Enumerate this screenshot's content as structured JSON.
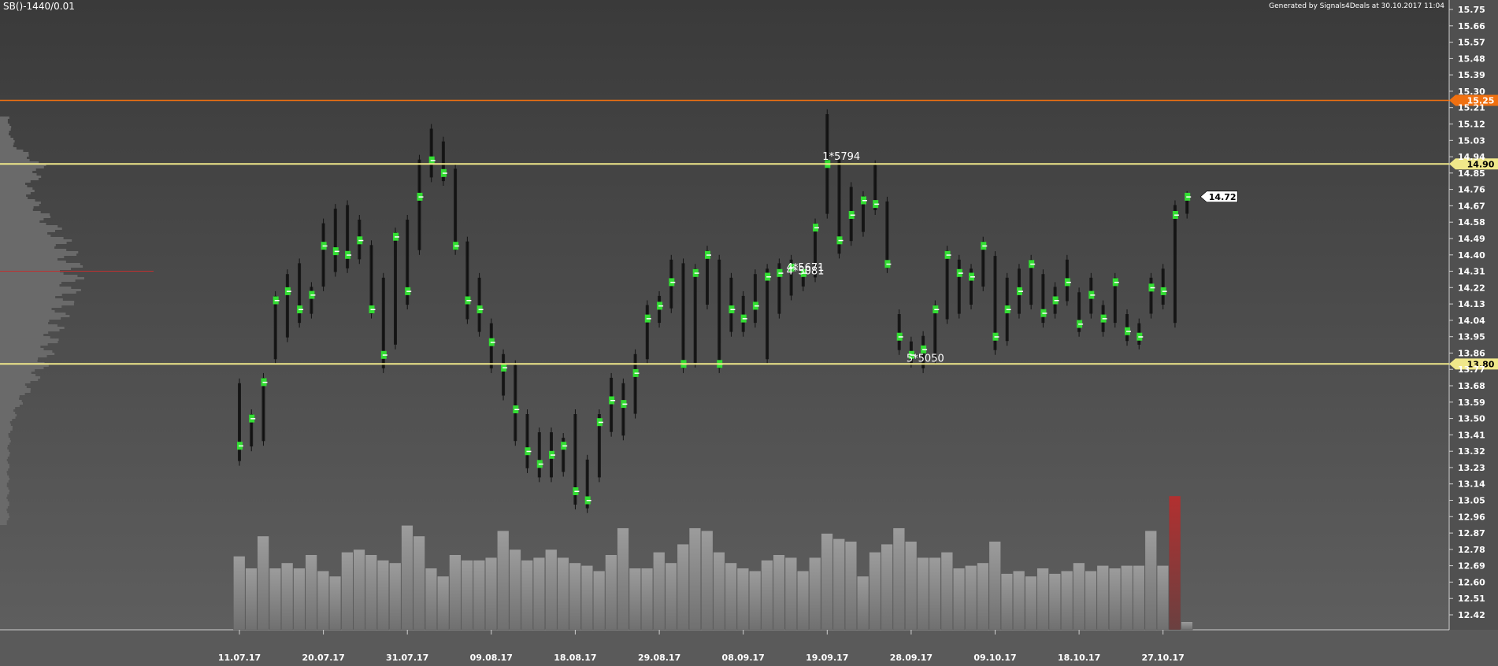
{
  "header": {
    "symbol": "SB()-1440/0.01",
    "generated": "Generated by Signals4Deals at 30.10.2017 11:04"
  },
  "colors": {
    "bg_top": "#3a3a3a",
    "bg_bottom": "#5a5a5a",
    "candle_body": "#111111",
    "cluster": "#33dd33",
    "volume": "#9a9a9a",
    "volume_last": "#b03030",
    "level": "#f0e88a",
    "level_orange": "#f07010",
    "axis_text": "#ffffff"
  },
  "chart_data": {
    "type": "candlestick",
    "ylim": [
      12.42,
      15.75
    ],
    "y_ticks": [
      15.75,
      15.66,
      15.57,
      15.48,
      15.39,
      15.3,
      15.21,
      15.12,
      15.03,
      14.94,
      14.85,
      14.76,
      14.67,
      14.58,
      14.49,
      14.4,
      14.31,
      14.22,
      14.13,
      14.04,
      13.95,
      13.86,
      13.77,
      13.68,
      13.59,
      13.5,
      13.41,
      13.32,
      13.23,
      13.14,
      13.05,
      12.96,
      12.87,
      12.78,
      12.69,
      12.6,
      12.51,
      12.42
    ],
    "x_ticks": [
      {
        "label": "11.07.17",
        "index": 0
      },
      {
        "label": "20.07.17",
        "index": 7
      },
      {
        "label": "31.07.17",
        "index": 14
      },
      {
        "label": "09.08.17",
        "index": 21
      },
      {
        "label": "18.08.17",
        "index": 28
      },
      {
        "label": "29.08.17",
        "index": 35
      },
      {
        "label": "08.09.17",
        "index": 42
      },
      {
        "label": "19.09.17",
        "index": 49
      },
      {
        "label": "28.09.17",
        "index": 56
      },
      {
        "label": "09.10.17",
        "index": 63
      },
      {
        "label": "18.10.17",
        "index": 70
      },
      {
        "label": "27.10.17",
        "index": 77
      }
    ],
    "levels": [
      {
        "value": 15.25,
        "label": "15.25",
        "color": "#f07010"
      },
      {
        "value": 14.9,
        "label": "14.90",
        "color": "#f0e88a"
      },
      {
        "value": 13.8,
        "label": "13.80",
        "color": "#f0e88a"
      }
    ],
    "last_price": {
      "value": 14.72,
      "label": "14.72"
    },
    "annotations": [
      {
        "text": "1*5794",
        "index": 49,
        "y": 14.94
      },
      {
        "text": "4*5671",
        "index": 46,
        "y": 14.33
      },
      {
        "text": "4*5081",
        "index": 46,
        "y": 14.31
      },
      {
        "text": "5*5050",
        "index": 56,
        "y": 13.83
      }
    ],
    "candles": [
      {
        "h": 13.72,
        "l": 13.24,
        "c": 13.35
      },
      {
        "h": 13.55,
        "l": 13.32,
        "c": 13.5
      },
      {
        "h": 13.75,
        "l": 13.35,
        "c": 13.7
      },
      {
        "h": 14.2,
        "l": 13.8,
        "c": 14.15
      },
      {
        "h": 14.32,
        "l": 13.92,
        "c": 14.2
      },
      {
        "h": 14.38,
        "l": 14.0,
        "c": 14.1
      },
      {
        "h": 14.25,
        "l": 14.05,
        "c": 14.18
      },
      {
        "h": 14.6,
        "l": 14.2,
        "c": 14.45
      },
      {
        "h": 14.68,
        "l": 14.28,
        "c": 14.42
      },
      {
        "h": 14.7,
        "l": 14.3,
        "c": 14.4
      },
      {
        "h": 14.62,
        "l": 14.35,
        "c": 14.48
      },
      {
        "h": 14.48,
        "l": 14.05,
        "c": 14.1
      },
      {
        "h": 14.3,
        "l": 13.75,
        "c": 13.85
      },
      {
        "h": 14.55,
        "l": 13.88,
        "c": 14.5
      },
      {
        "h": 14.62,
        "l": 14.1,
        "c": 14.2
      },
      {
        "h": 14.95,
        "l": 14.4,
        "c": 14.72
      },
      {
        "h": 15.12,
        "l": 14.8,
        "c": 14.92
      },
      {
        "h": 15.05,
        "l": 14.78,
        "c": 14.85
      },
      {
        "h": 14.9,
        "l": 14.4,
        "c": 14.45
      },
      {
        "h": 14.5,
        "l": 14.02,
        "c": 14.15
      },
      {
        "h": 14.3,
        "l": 13.95,
        "c": 14.1
      },
      {
        "h": 14.05,
        "l": 13.75,
        "c": 13.92
      },
      {
        "h": 13.88,
        "l": 13.6,
        "c": 13.78
      },
      {
        "h": 13.82,
        "l": 13.35,
        "c": 13.55
      },
      {
        "h": 13.55,
        "l": 13.2,
        "c": 13.32
      },
      {
        "h": 13.45,
        "l": 13.15,
        "c": 13.25
      },
      {
        "h": 13.45,
        "l": 13.15,
        "c": 13.3
      },
      {
        "h": 13.42,
        "l": 13.18,
        "c": 13.35
      },
      {
        "h": 13.55,
        "l": 13.0,
        "c": 13.1
      },
      {
        "h": 13.3,
        "l": 12.98,
        "c": 13.05
      },
      {
        "h": 13.55,
        "l": 13.15,
        "c": 13.48
      },
      {
        "h": 13.75,
        "l": 13.4,
        "c": 13.6
      },
      {
        "h": 13.72,
        "l": 13.38,
        "c": 13.58
      },
      {
        "h": 13.88,
        "l": 13.5,
        "c": 13.75
      },
      {
        "h": 14.15,
        "l": 13.8,
        "c": 14.05
      },
      {
        "h": 14.2,
        "l": 14.0,
        "c": 14.12
      },
      {
        "h": 14.4,
        "l": 14.08,
        "c": 14.25
      },
      {
        "h": 14.38,
        "l": 13.75,
        "c": 13.8
      },
      {
        "h": 14.35,
        "l": 13.78,
        "c": 14.3
      },
      {
        "h": 14.45,
        "l": 14.1,
        "c": 14.4
      },
      {
        "h": 14.4,
        "l": 13.75,
        "c": 13.8
      },
      {
        "h": 14.3,
        "l": 13.95,
        "c": 14.1
      },
      {
        "h": 14.2,
        "l": 13.95,
        "c": 14.05
      },
      {
        "h": 14.32,
        "l": 14.0,
        "c": 14.12
      },
      {
        "h": 14.35,
        "l": 13.8,
        "c": 14.28
      },
      {
        "h": 14.38,
        "l": 14.05,
        "c": 14.3
      },
      {
        "h": 14.4,
        "l": 14.15,
        "c": 14.33
      },
      {
        "h": 14.35,
        "l": 14.2,
        "c": 14.3
      },
      {
        "h": 14.6,
        "l": 14.25,
        "c": 14.55
      },
      {
        "h": 15.2,
        "l": 14.6,
        "c": 14.9
      },
      {
        "h": 14.95,
        "l": 14.38,
        "c": 14.48
      },
      {
        "h": 14.8,
        "l": 14.45,
        "c": 14.62
      },
      {
        "h": 14.75,
        "l": 14.5,
        "c": 14.7
      },
      {
        "h": 14.92,
        "l": 14.62,
        "c": 14.68
      },
      {
        "h": 14.72,
        "l": 14.3,
        "c": 14.35
      },
      {
        "h": 14.1,
        "l": 13.85,
        "c": 13.95
      },
      {
        "h": 13.95,
        "l": 13.78,
        "c": 13.85
      },
      {
        "h": 13.98,
        "l": 13.75,
        "c": 13.88
      },
      {
        "h": 14.15,
        "l": 13.8,
        "c": 14.1
      },
      {
        "h": 14.45,
        "l": 14.02,
        "c": 14.4
      },
      {
        "h": 14.4,
        "l": 14.05,
        "c": 14.3
      },
      {
        "h": 14.35,
        "l": 14.1,
        "c": 14.28
      },
      {
        "h": 14.5,
        "l": 14.2,
        "c": 14.45
      },
      {
        "h": 14.42,
        "l": 13.85,
        "c": 13.95
      },
      {
        "h": 14.3,
        "l": 13.9,
        "c": 14.1
      },
      {
        "h": 14.35,
        "l": 14.05,
        "c": 14.2
      },
      {
        "h": 14.4,
        "l": 14.1,
        "c": 14.35
      },
      {
        "h": 14.32,
        "l": 14.0,
        "c": 14.08
      },
      {
        "h": 14.25,
        "l": 14.05,
        "c": 14.15
      },
      {
        "h": 14.4,
        "l": 14.12,
        "c": 14.25
      },
      {
        "h": 14.22,
        "l": 13.95,
        "c": 14.02
      },
      {
        "h": 14.3,
        "l": 14.05,
        "c": 14.18
      },
      {
        "h": 14.15,
        "l": 13.95,
        "c": 14.05
      },
      {
        "h": 14.3,
        "l": 14.0,
        "c": 14.25
      },
      {
        "h": 14.1,
        "l": 13.9,
        "c": 13.98
      },
      {
        "h": 14.05,
        "l": 13.88,
        "c": 13.95
      },
      {
        "h": 14.3,
        "l": 14.05,
        "c": 14.22
      },
      {
        "h": 14.35,
        "l": 14.1,
        "c": 14.2
      },
      {
        "h": 14.7,
        "l": 14.0,
        "c": 14.62
      },
      {
        "h": 14.75,
        "l": 14.6,
        "c": 14.72
      }
    ],
    "volumes": [
      0.55,
      0.46,
      0.7,
      0.46,
      0.5,
      0.46,
      0.56,
      0.44,
      0.4,
      0.58,
      0.6,
      0.56,
      0.52,
      0.5,
      0.78,
      0.7,
      0.46,
      0.4,
      0.56,
      0.52,
      0.52,
      0.54,
      0.74,
      0.6,
      0.52,
      0.54,
      0.6,
      0.54,
      0.5,
      0.48,
      0.44,
      0.56,
      0.76,
      0.46,
      0.46,
      0.58,
      0.5,
      0.64,
      0.76,
      0.74,
      0.58,
      0.5,
      0.46,
      0.44,
      0.52,
      0.56,
      0.54,
      0.44,
      0.54,
      0.72,
      0.68,
      0.66,
      0.4,
      0.58,
      0.64,
      0.76,
      0.66,
      0.54,
      0.54,
      0.58,
      0.46,
      0.48,
      0.5,
      0.66,
      0.42,
      0.44,
      0.4,
      0.46,
      0.42,
      0.44,
      0.5,
      0.44,
      0.48,
      0.46,
      0.48,
      0.48,
      0.74,
      0.48,
      1.0,
      0.06
    ],
    "volume_profile": {
      "poc": 14.31
    }
  }
}
